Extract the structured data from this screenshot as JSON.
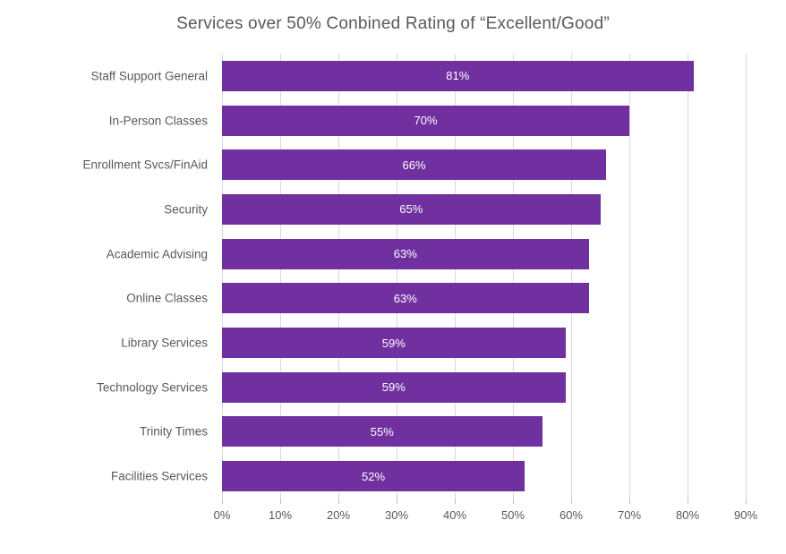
{
  "chart_data": {
    "type": "bar",
    "orientation": "horizontal",
    "title": "Services over 50% Conbined Rating of “Excellent/Good”",
    "categories": [
      "Staff Support General",
      "In-Person Classes",
      "Enrollment Svcs/FinAid",
      "Security",
      "Academic Advising",
      "Online Classes",
      "Library Services",
      "Technology Services",
      "Trinity Times",
      "Facilities Services"
    ],
    "values": [
      81,
      70,
      66,
      65,
      63,
      63,
      59,
      59,
      55,
      52
    ],
    "value_labels": [
      "81%",
      "70%",
      "66%",
      "65%",
      "63%",
      "63%",
      "59%",
      "59%",
      "55%",
      "52%"
    ],
    "xlabel": "",
    "ylabel": "",
    "xlim": [
      0,
      90
    ],
    "x_tick_values": [
      0,
      10,
      20,
      30,
      40,
      50,
      60,
      70,
      80,
      90
    ],
    "x_tick_labels": [
      "0%",
      "10%",
      "20%",
      "30%",
      "40%",
      "50%",
      "60%",
      "70%",
      "80%",
      "90%"
    ],
    "grid": "vertical",
    "legend": "none",
    "colors": {
      "bar": "#7030A0",
      "title_text": "#595959",
      "axis_text": "#595959",
      "value_label_text": "#FFFFFF",
      "gridline": "#D9D9D9",
      "tick_mark": "#BFBFBF"
    }
  }
}
